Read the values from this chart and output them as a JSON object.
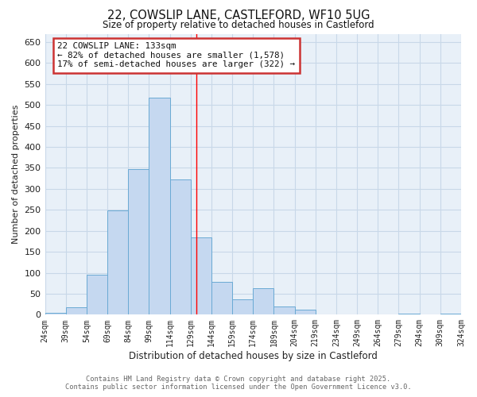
{
  "title1": "22, COWSLIP LANE, CASTLEFORD, WF10 5UG",
  "title2": "Size of property relative to detached houses in Castleford",
  "xlabel": "Distribution of detached houses by size in Castleford",
  "ylabel": "Number of detached properties",
  "bar_values": [
    5,
    17,
    95,
    248,
    347,
    517,
    323,
    185,
    79,
    37,
    64,
    20,
    12,
    0,
    0,
    0,
    0,
    3,
    0,
    3
  ],
  "bin_edges": [
    24,
    39,
    54,
    69,
    84,
    99,
    114,
    129,
    144,
    159,
    174,
    189,
    204,
    219,
    234,
    249,
    264,
    279,
    294,
    309,
    324
  ],
  "bar_color": "#c5d8f0",
  "bar_edgecolor": "#6aaad4",
  "property_line_x": 133,
  "ylim": [
    0,
    670
  ],
  "yticks": [
    0,
    50,
    100,
    150,
    200,
    250,
    300,
    350,
    400,
    450,
    500,
    550,
    600,
    650
  ],
  "annotation_title": "22 COWSLIP LANE: 133sqm",
  "annotation_line1": "← 82% of detached houses are smaller (1,578)",
  "annotation_line2": "17% of semi-detached houses are larger (322) →",
  "footer1": "Contains HM Land Registry data © Crown copyright and database right 2025.",
  "footer2": "Contains public sector information licensed under the Open Government Licence v3.0.",
  "background_color": "#ffffff",
  "grid_color": "#c8d8e8",
  "plot_bg_color": "#e8f0f8"
}
